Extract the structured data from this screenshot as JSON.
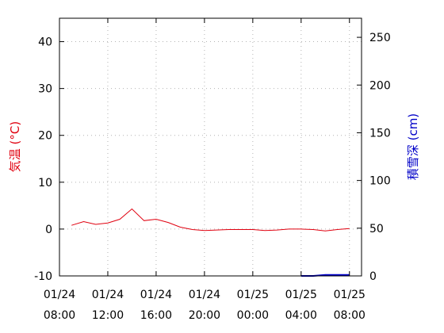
{
  "colors": {
    "temperature": "#e0000f",
    "snow": "#0000c8",
    "grid": "#b4b4b4",
    "frame": "#000000"
  },
  "chart_data": {
    "type": "line",
    "title": "",
    "left_axis": {
      "label": "気温 (°C)",
      "ylim": [
        -10,
        45
      ],
      "ticks": [
        -10,
        0,
        10,
        20,
        30,
        40
      ]
    },
    "right_axis": {
      "label": "積雪深 (cm)",
      "ylim": [
        0,
        270
      ],
      "ticks": [
        0,
        50,
        100,
        150,
        200,
        250
      ]
    },
    "x_axis": {
      "range_hours": [
        0,
        25
      ],
      "ticks": [
        {
          "hour": 0,
          "date": "01/24",
          "time": "08:00"
        },
        {
          "hour": 4,
          "date": "01/24",
          "time": "12:00"
        },
        {
          "hour": 8,
          "date": "01/24",
          "time": "16:00"
        },
        {
          "hour": 12,
          "date": "01/24",
          "time": "20:00"
        },
        {
          "hour": 16,
          "date": "01/25",
          "time": "00:00"
        },
        {
          "hour": 20,
          "date": "01/25",
          "time": "04:00"
        },
        {
          "hour": 24,
          "date": "01/25",
          "time": "08:00"
        }
      ]
    },
    "grid": true,
    "series": [
      {
        "axis": "left",
        "x": [
          1,
          2,
          3,
          4,
          5,
          6,
          7,
          8,
          9,
          10,
          11,
          12,
          13,
          14,
          15,
          16,
          17,
          18,
          19,
          20,
          21,
          22,
          23,
          24
        ],
        "values": [
          0.8,
          1.6,
          1.0,
          1.3,
          2.1,
          4.3,
          1.8,
          2.1,
          1.4,
          0.4,
          -0.1,
          -0.3,
          -0.2,
          -0.1,
          -0.1,
          -0.1,
          -0.3,
          -0.2,
          0.0,
          0.0,
          -0.1,
          -0.4,
          -0.1,
          0.1
        ]
      },
      {
        "axis": "right",
        "x": [
          20,
          21,
          22,
          23,
          24
        ],
        "values": [
          0,
          0,
          1,
          1,
          1
        ]
      }
    ]
  }
}
